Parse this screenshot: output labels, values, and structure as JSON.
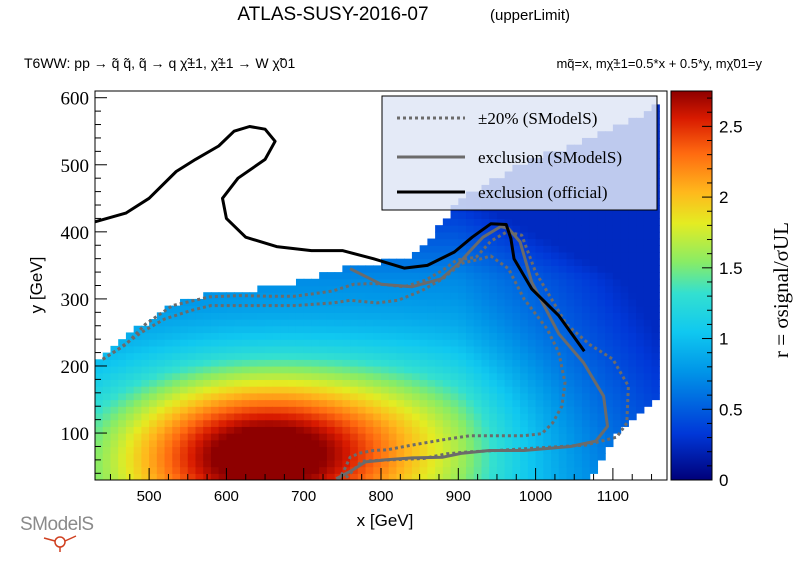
{
  "title": "ATLAS-SUSY-2016-07",
  "title_tag": "(upperLimit)",
  "process_label": "T6WW: pp → q̃ q̃, q̃ → q χ̃±1, χ̃±1 → W χ̃01",
  "mass_label": "mq̃=x, mχ̃±1=0.5*x + 0.5*y, mχ̃01=y",
  "logo_text": "SModelS",
  "chart_data": {
    "type": "heatmap",
    "title": "ATLAS-SUSY-2016-07",
    "xlabel": "x [GeV]",
    "ylabel": "y [GeV]",
    "zlabel": "r = σsignal/σUL",
    "xlim": [
      430,
      1170
    ],
    "ylim": [
      30,
      610
    ],
    "zlim": [
      0,
      2.75
    ],
    "x_ticks": [
      500,
      600,
      700,
      800,
      900,
      1000,
      1100
    ],
    "y_ticks": [
      100,
      200,
      300,
      400,
      500,
      600
    ],
    "z_ticks": [
      0,
      0.5,
      1,
      1.5,
      2,
      2.5
    ],
    "z_tick_labels": [
      "0",
      "0.5",
      "1",
      "1.5",
      "2",
      "2.5"
    ],
    "colormap": [
      "#000080",
      "#0044dd",
      "#00aaee",
      "#22ddee",
      "#88ee66",
      "#eeee22",
      "#ffaa22",
      "#ff5511",
      "#cc1100",
      "#880000"
    ],
    "legend": {
      "position": "top-right",
      "entries": [
        {
          "label": "±20% (SModelS)",
          "style": "dotted",
          "color": "#6b6b6b"
        },
        {
          "label": "exclusion (SModelS)",
          "style": "solid",
          "color": "#6b6b6b"
        },
        {
          "label": "exclusion (official)",
          "style": "solid",
          "color": "#000000"
        }
      ]
    },
    "curves": {
      "exclusion_official": [
        [
          430,
          415
        ],
        [
          470,
          428
        ],
        [
          500,
          450
        ],
        [
          535,
          490
        ],
        [
          560,
          508
        ],
        [
          590,
          528
        ],
        [
          610,
          550
        ],
        [
          630,
          557
        ],
        [
          650,
          553
        ],
        [
          663,
          535
        ],
        [
          650,
          508
        ],
        [
          615,
          480
        ],
        [
          595,
          450
        ],
        [
          600,
          420
        ],
        [
          625,
          392
        ],
        [
          665,
          378
        ],
        [
          710,
          372
        ],
        [
          750,
          372
        ],
        [
          790,
          360
        ],
        [
          830,
          346
        ],
        [
          860,
          350
        ],
        [
          895,
          370
        ],
        [
          918,
          392
        ],
        [
          942,
          412
        ],
        [
          962,
          411
        ],
        [
          968,
          390
        ],
        [
          972,
          360
        ],
        [
          995,
          315
        ],
        [
          1030,
          275
        ],
        [
          1063,
          222
        ]
      ],
      "exclusion_smodels": [
        [
          760,
          345
        ],
        [
          800,
          322
        ],
        [
          840,
          318
        ],
        [
          878,
          330
        ],
        [
          900,
          352
        ],
        [
          918,
          375
        ],
        [
          932,
          392
        ],
        [
          955,
          408
        ],
        [
          965,
          405
        ],
        [
          980,
          385
        ],
        [
          995,
          325
        ],
        [
          1030,
          248
        ],
        [
          1062,
          205
        ],
        [
          1088,
          155
        ],
        [
          1093,
          110
        ],
        [
          1078,
          88
        ],
        [
          1045,
          80
        ],
        [
          985,
          74
        ],
        [
          940,
          74
        ],
        [
          905,
          70
        ],
        [
          880,
          64
        ],
        [
          840,
          63
        ],
        [
          805,
          60
        ],
        [
          780,
          57
        ],
        [
          762,
          44
        ],
        [
          742,
          32
        ]
      ],
      "band_plus20": [
        [
          440,
          210
        ],
        [
          470,
          232
        ],
        [
          495,
          262
        ],
        [
          530,
          290
        ],
        [
          578,
          303
        ],
        [
          618,
          305
        ],
        [
          652,
          304
        ],
        [
          688,
          304
        ],
        [
          715,
          308
        ],
        [
          738,
          312
        ],
        [
          765,
          322
        ],
        [
          792,
          323
        ],
        [
          830,
          318
        ],
        [
          858,
          328
        ],
        [
          880,
          343
        ],
        [
          898,
          358
        ],
        [
          923,
          362
        ],
        [
          942,
          386
        ],
        [
          963,
          400
        ],
        [
          982,
          395
        ],
        [
          1000,
          340
        ],
        [
          1040,
          262
        ],
        [
          1070,
          232
        ],
        [
          1100,
          210
        ],
        [
          1120,
          170
        ],
        [
          1118,
          115
        ],
        [
          1105,
          94
        ],
        [
          1065,
          82
        ],
        [
          1005,
          78
        ],
        [
          950,
          74
        ],
        [
          915,
          72
        ],
        [
          885,
          69
        ],
        [
          855,
          62
        ],
        [
          810,
          60
        ],
        [
          775,
          58
        ],
        [
          762,
          42
        ],
        [
          752,
          30
        ]
      ],
      "band_minus20": [
        [
          440,
          210
        ],
        [
          460,
          225
        ],
        [
          490,
          250
        ],
        [
          520,
          270
        ],
        [
          555,
          283
        ],
        [
          580,
          290
        ],
        [
          618,
          290
        ],
        [
          660,
          290
        ],
        [
          690,
          290
        ],
        [
          712,
          292
        ],
        [
          738,
          294
        ],
        [
          760,
          298
        ],
        [
          795,
          294
        ],
        [
          822,
          298
        ],
        [
          852,
          312
        ],
        [
          880,
          330
        ],
        [
          904,
          353
        ],
        [
          930,
          360
        ],
        [
          942,
          364
        ],
        [
          965,
          345
        ],
        [
          985,
          300
        ],
        [
          1015,
          255
        ],
        [
          1030,
          220
        ],
        [
          1038,
          175
        ],
        [
          1034,
          140
        ],
        [
          1022,
          115
        ],
        [
          1008,
          99
        ],
        [
          985,
          96
        ],
        [
          950,
          96
        ],
        [
          915,
          96
        ],
        [
          880,
          90
        ],
        [
          840,
          82
        ],
        [
          808,
          75
        ],
        [
          790,
          74
        ],
        [
          772,
          70
        ],
        [
          760,
          64
        ],
        [
          752,
          44
        ],
        [
          745,
          30
        ]
      ]
    },
    "region_edge": [
      [
        430,
        35
      ],
      [
        430,
        210
      ],
      [
        470,
        242
      ],
      [
        520,
        286
      ],
      [
        560,
        303
      ],
      [
        600,
        310
      ],
      [
        640,
        315
      ],
      [
        700,
        328
      ],
      [
        748,
        344
      ],
      [
        782,
        352
      ],
      [
        815,
        358
      ],
      [
        842,
        365
      ],
      [
        863,
        392
      ],
      [
        890,
        430
      ],
      [
        918,
        458
      ],
      [
        945,
        479
      ],
      [
        968,
        492
      ],
      [
        992,
        504
      ],
      [
        1012,
        514
      ],
      [
        1030,
        522
      ],
      [
        1052,
        530
      ],
      [
        1080,
        542
      ],
      [
        1105,
        557
      ],
      [
        1130,
        572
      ],
      [
        1150,
        582
      ],
      [
        1160,
        588
      ],
      [
        1160,
        150
      ],
      [
        1140,
        140
      ],
      [
        1118,
        110
      ],
      [
        1100,
        90
      ],
      [
        1090,
        70
      ],
      [
        1080,
        40
      ],
      [
        1070,
        30
      ],
      [
        430,
        30
      ]
    ],
    "white_gap_upper_left": [
      [
        430,
        415
      ],
      [
        470,
        428
      ],
      [
        500,
        450
      ],
      [
        530,
        486
      ],
      [
        560,
        508
      ],
      [
        590,
        528
      ],
      [
        615,
        545
      ],
      [
        630,
        560
      ],
      [
        660,
        573
      ],
      [
        690,
        580
      ],
      [
        720,
        590
      ],
      [
        760,
        600
      ],
      [
        780,
        610
      ],
      [
        430,
        610
      ]
    ]
  }
}
